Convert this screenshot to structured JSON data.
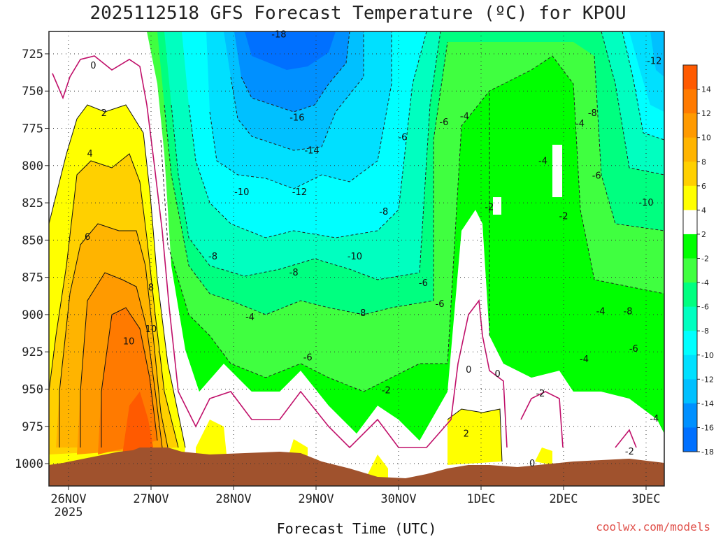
{
  "chart_data": {
    "type": "heatmap",
    "title": "2025112518 GFS Forecast Temperature (ºC) for KPOU",
    "xlabel": "Forecast Time (UTC)",
    "credit": "coolwx.com/models",
    "x_ticks": [
      "26NOV",
      "27NOV",
      "28NOV",
      "29NOV",
      "30NOV",
      "1DEC",
      "2DEC",
      "3DEC"
    ],
    "x_sub": "2025",
    "y_ticks": [
      "725",
      "750",
      "775",
      "800",
      "825",
      "850",
      "875",
      "900",
      "925",
      "950",
      "975",
      "1000"
    ],
    "ylim": [
      1015,
      710
    ],
    "colorbar_labels": [
      "14",
      "12",
      "10",
      "8",
      "6",
      "4",
      "2",
      "-2",
      "-4",
      "-6",
      "-8",
      "-10",
      "-12",
      "-14",
      "-16",
      "-18"
    ],
    "colorbar_colors": [
      "#ff5a00",
      "#ff7a00",
      "#ff9a00",
      "#ffb400",
      "#ffd000",
      "#ffff00",
      "#ffffff",
      "#00ff00",
      "#40ff40",
      "#00ff80",
      "#00ffc0",
      "#00ffff",
      "#00e0ff",
      "#00c0ff",
      "#0090ff",
      "#0070ff"
    ],
    "contour_labels": [
      {
        "text": "0",
        "day": 0.3,
        "p": 733
      },
      {
        "text": "2",
        "day": 0.43,
        "p": 765
      },
      {
        "text": "4",
        "day": 0.26,
        "p": 792
      },
      {
        "text": "6",
        "day": 0.23,
        "p": 848
      },
      {
        "text": "8",
        "day": 1.0,
        "p": 882
      },
      {
        "text": "10",
        "day": 1.0,
        "p": 910
      },
      {
        "text": "10",
        "day": 0.73,
        "p": 918
      },
      {
        "text": "-18",
        "day": 2.55,
        "p": 712
      },
      {
        "text": "-16",
        "day": 2.77,
        "p": 768
      },
      {
        "text": "-14",
        "day": 2.95,
        "p": 790
      },
      {
        "text": "-12",
        "day": 2.8,
        "p": 818
      },
      {
        "text": "-10",
        "day": 2.1,
        "p": 818
      },
      {
        "text": "-8",
        "day": 1.75,
        "p": 861
      },
      {
        "text": "-8",
        "day": 2.73,
        "p": 872
      },
      {
        "text": "-10",
        "day": 3.47,
        "p": 861
      },
      {
        "text": "-8",
        "day": 3.55,
        "p": 899
      },
      {
        "text": "-6",
        "day": 4.05,
        "p": 781
      },
      {
        "text": "-8",
        "day": 3.82,
        "p": 831
      },
      {
        "text": "-6",
        "day": 4.55,
        "p": 771
      },
      {
        "text": "-4",
        "day": 4.8,
        "p": 767
      },
      {
        "text": "-6",
        "day": 4.3,
        "p": 879
      },
      {
        "text": "-6",
        "day": 4.5,
        "p": 893
      },
      {
        "text": "-4",
        "day": 2.2,
        "p": 902
      },
      {
        "text": "-6",
        "day": 2.9,
        "p": 929
      },
      {
        "text": "-2",
        "day": 3.85,
        "p": 951
      },
      {
        "text": "-2",
        "day": 5.1,
        "p": 828
      },
      {
        "text": "-4",
        "day": 5.75,
        "p": 797
      },
      {
        "text": "-4",
        "day": 6.2,
        "p": 772
      },
      {
        "text": "-8",
        "day": 6.35,
        "p": 765
      },
      {
        "text": "-6",
        "day": 6.4,
        "p": 807
      },
      {
        "text": "-2",
        "day": 6.0,
        "p": 834
      },
      {
        "text": "-12",
        "day": 7.1,
        "p": 730
      },
      {
        "text": "-10",
        "day": 7.0,
        "p": 825
      },
      {
        "text": "-4",
        "day": 6.45,
        "p": 898
      },
      {
        "text": "-8",
        "day": 6.78,
        "p": 898
      },
      {
        "text": "-6",
        "day": 6.85,
        "p": 923
      },
      {
        "text": "-4",
        "day": 6.25,
        "p": 930
      },
      {
        "text": "0",
        "day": 4.85,
        "p": 937
      },
      {
        "text": "0",
        "day": 5.2,
        "p": 940
      },
      {
        "text": "2",
        "day": 4.82,
        "p": 980
      },
      {
        "text": "-2",
        "day": 5.72,
        "p": 953
      },
      {
        "text": "0",
        "day": 5.62,
        "p": 1000
      },
      {
        "text": "-2",
        "day": 6.8,
        "p": 992
      },
      {
        "text": "-4",
        "day": 7.1,
        "p": 970
      }
    ]
  }
}
